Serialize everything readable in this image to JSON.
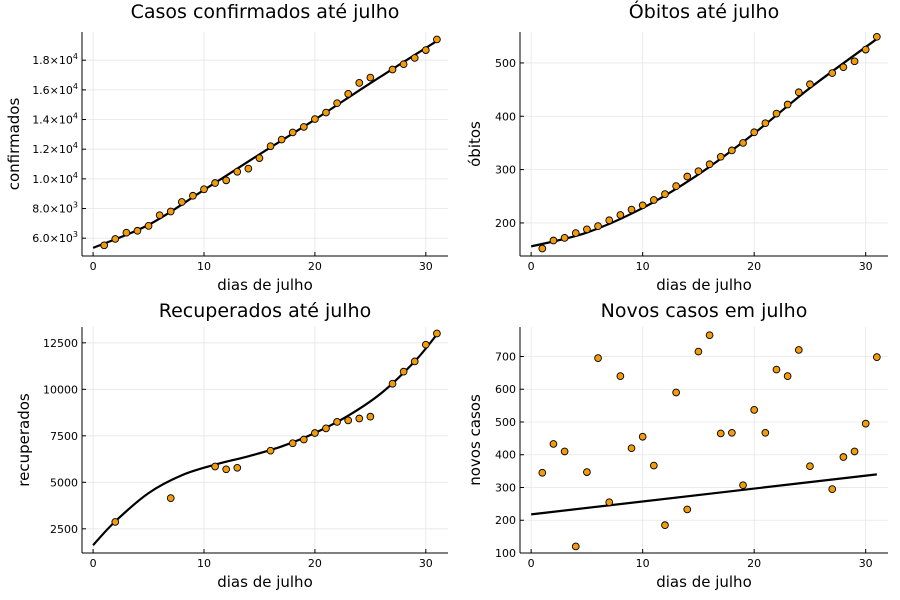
{
  "chart_data": [
    {
      "type": "scatter",
      "title": "Casos confirmados até julho",
      "xlabel": "dias de julho",
      "ylabel": "confirmados",
      "xlim": [
        -1,
        32
      ],
      "ylim": [
        4800,
        19900
      ],
      "xticks": [
        0,
        10,
        20,
        30
      ],
      "xtick_labels": [
        "0",
        "10",
        "20",
        "30"
      ],
      "yticks": [
        6000,
        8000,
        10000,
        12000,
        14000,
        16000,
        18000
      ],
      "ytick_labels": [
        {
          "mantissa": "6.0×10",
          "exp": "3"
        },
        {
          "mantissa": "8.0×10",
          "exp": "3"
        },
        {
          "mantissa": "1.0×10",
          "exp": "4"
        },
        {
          "mantissa": "1.2×10",
          "exp": "4"
        },
        {
          "mantissa": "1.4×10",
          "exp": "4"
        },
        {
          "mantissa": "1.6×10",
          "exp": "4"
        },
        {
          "mantissa": "1.8×10",
          "exp": "4"
        }
      ],
      "grid": true,
      "legend": "none",
      "points": {
        "x": [
          1,
          2,
          3,
          4,
          5,
          6,
          7,
          8,
          9,
          10,
          11,
          12,
          13,
          14,
          15,
          16,
          17,
          18,
          19,
          20,
          21,
          22,
          23,
          24,
          25,
          27,
          28,
          29,
          30,
          31
        ],
        "y": [
          5520,
          5950,
          6370,
          6500,
          6830,
          7550,
          7800,
          8440,
          8860,
          9300,
          9720,
          9900,
          10480,
          10690,
          11400,
          12200,
          12650,
          13130,
          13500,
          14030,
          14470,
          15100,
          15730,
          16470,
          16830,
          17370,
          17730,
          18150,
          18680,
          19400
        ]
      },
      "fit": {
        "x": [
          0,
          5,
          10,
          15,
          20,
          25,
          31
        ],
        "y": [
          5350,
          6900,
          9250,
          11650,
          14000,
          16450,
          19300
        ]
      }
    },
    {
      "type": "scatter",
      "title": "Óbitos até julho",
      "xlabel": "dias de julho",
      "ylabel": "óbitos",
      "xlim": [
        -1,
        32
      ],
      "ylim": [
        138,
        558
      ],
      "xticks": [
        0,
        10,
        20,
        30
      ],
      "xtick_labels": [
        "0",
        "10",
        "20",
        "30"
      ],
      "yticks": [
        200,
        300,
        400,
        500
      ],
      "ytick_labels": [
        "200",
        "300",
        "400",
        "500"
      ],
      "grid": true,
      "legend": "none",
      "points": {
        "x": [
          1,
          2,
          3,
          4,
          5,
          6,
          7,
          8,
          9,
          10,
          11,
          12,
          13,
          14,
          15,
          16,
          17,
          18,
          19,
          20,
          21,
          22,
          23,
          24,
          25,
          27,
          28,
          29,
          30,
          31
        ],
        "y": [
          152,
          167,
          172,
          181,
          188,
          194,
          205,
          215,
          225,
          233,
          243,
          254,
          269,
          287,
          297,
          310,
          324,
          336,
          350,
          370,
          387,
          405,
          422,
          445,
          460,
          481,
          492,
          503,
          525,
          549
        ]
      },
      "fit": {
        "x": [
          0,
          5,
          10,
          15,
          20,
          25,
          31
        ],
        "y": [
          156,
          182,
          228,
          291,
          368,
          453,
          545
        ]
      }
    },
    {
      "type": "scatter",
      "title": "Recuperados até julho",
      "xlabel": "dias de julho",
      "ylabel": "recuperados",
      "xlim": [
        -1,
        32
      ],
      "ylim": [
        1200,
        13350
      ],
      "xticks": [
        0,
        10,
        20,
        30
      ],
      "xtick_labels": [
        "0",
        "10",
        "20",
        "30"
      ],
      "yticks": [
        2500,
        5000,
        7500,
        10000,
        12500
      ],
      "ytick_labels": [
        "2500",
        "5000",
        "7500",
        "10000",
        "12500"
      ],
      "grid": true,
      "legend": "none",
      "points": {
        "x": [
          2,
          7,
          11,
          12,
          13,
          16,
          18,
          19,
          20,
          21,
          22,
          23,
          24,
          25,
          27,
          28,
          29,
          30,
          31
        ],
        "y": [
          2870,
          4150,
          5850,
          5700,
          5780,
          6700,
          7100,
          7300,
          7650,
          7900,
          8250,
          8330,
          8430,
          8530,
          10300,
          10950,
          11500,
          12400,
          13000
        ]
      },
      "fit": {
        "x": [
          0,
          2,
          5,
          8,
          11,
          14,
          17,
          20,
          23,
          26,
          29,
          31
        ],
        "y": [
          1620,
          2900,
          4420,
          5380,
          5950,
          6400,
          6930,
          7650,
          8580,
          9800,
          11500,
          12950
        ]
      }
    },
    {
      "type": "scatter",
      "title": "Novos casos em julho",
      "xlabel": "dias de julho",
      "ylabel": "novos casos",
      "xlim": [
        -1,
        32
      ],
      "ylim": [
        100,
        790
      ],
      "xticks": [
        0,
        10,
        20,
        30
      ],
      "xtick_labels": [
        "0",
        "10",
        "20",
        "30"
      ],
      "yticks": [
        100,
        200,
        300,
        400,
        500,
        600,
        700
      ],
      "ytick_labels": [
        "100",
        "200",
        "300",
        "400",
        "500",
        "600",
        "700"
      ],
      "grid": true,
      "legend": "none",
      "points": {
        "x": [
          1,
          2,
          3,
          4,
          5,
          6,
          7,
          8,
          9,
          10,
          11,
          12,
          13,
          14,
          15,
          16,
          17,
          18,
          19,
          20,
          21,
          22,
          23,
          24,
          25,
          27,
          28,
          29,
          30,
          31
        ],
        "y": [
          345,
          433,
          410,
          120,
          347,
          695,
          255,
          640,
          420,
          455,
          367,
          185,
          590,
          233,
          715,
          765,
          465,
          467,
          307,
          537,
          467,
          660,
          640,
          720,
          365,
          295,
          393,
          410,
          495,
          698
        ]
      },
      "fit": {
        "x": [
          0,
          31
        ],
        "y": [
          218,
          340
        ]
      }
    }
  ]
}
